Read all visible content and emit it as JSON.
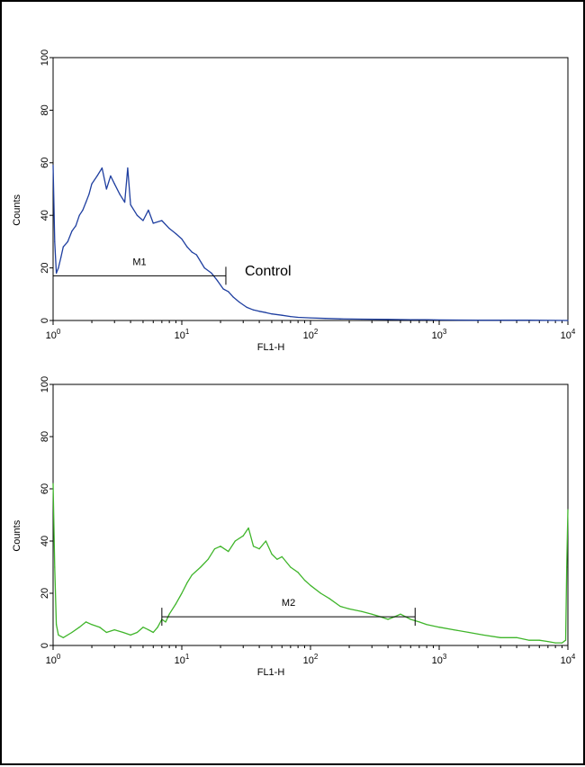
{
  "chart_data": [
    {
      "type": "line",
      "name": "top-panel",
      "x_scale": "log",
      "xlim": [
        1,
        10000
      ],
      "ylim": [
        0,
        100
      ],
      "xlabel": "FL1-H",
      "ylabel": "Counts",
      "y_ticks": [
        "0",
        "20",
        "40",
        "60",
        "80",
        "100"
      ],
      "x_ticks": [
        {
          "base": "10",
          "exp": "0"
        },
        {
          "base": "10",
          "exp": "1"
        },
        {
          "base": "10",
          "exp": "2"
        },
        {
          "base": "10",
          "exp": "3"
        },
        {
          "base": "10",
          "exp": "4"
        }
      ],
      "grid": false,
      "color": "#1f3fa0",
      "annotation": "Control",
      "marker": {
        "label": "M1",
        "x_start": 1.0,
        "x_end": 22,
        "y": 17
      },
      "series": [
        {
          "x": [
            1.0,
            1.03,
            1.06,
            1.1,
            1.15,
            1.2,
            1.3,
            1.4,
            1.5,
            1.6,
            1.7,
            1.8,
            1.9,
            2.0,
            2.2,
            2.4,
            2.6,
            2.8,
            3.0,
            3.3,
            3.6,
            3.8,
            4.0,
            4.5,
            5.0,
            5.5,
            6.0,
            7.0,
            8.0,
            9.0,
            10.0,
            11.0,
            12.0,
            13.0,
            15.0,
            17.0,
            19.0,
            21.0,
            23.0,
            25.0,
            28.0,
            32.0,
            36.0,
            40.0,
            45.0,
            50.0,
            60.0,
            70.0,
            80.0,
            100.0,
            130.0,
            170.0,
            250.0,
            400.0,
            600.0,
            800.0,
            1000.0,
            2000.0,
            5000.0,
            10000.0
          ],
          "y": [
            59,
            30,
            18,
            20,
            24,
            28,
            30,
            34,
            36,
            40,
            42,
            45,
            48,
            52,
            55,
            58,
            50,
            55,
            52,
            48,
            45,
            58,
            44,
            40,
            38,
            42,
            37,
            38,
            35,
            33,
            31,
            28,
            26,
            25,
            20,
            18,
            15,
            12,
            11,
            9,
            7,
            5,
            4,
            3.5,
            3,
            2.5,
            2,
            1.5,
            1.2,
            1,
            0.8,
            0.6,
            0.5,
            0.4,
            0.3,
            0.3,
            0.2,
            0.1,
            0.1,
            0
          ]
        }
      ]
    },
    {
      "type": "line",
      "name": "bottom-panel",
      "x_scale": "log",
      "xlim": [
        1,
        10000
      ],
      "ylim": [
        0,
        100
      ],
      "xlabel": "FL1-H",
      "ylabel": "Counts",
      "y_ticks": [
        "0",
        "20",
        "40",
        "60",
        "80",
        "100"
      ],
      "x_ticks": [
        {
          "base": "10",
          "exp": "0"
        },
        {
          "base": "10",
          "exp": "1"
        },
        {
          "base": "10",
          "exp": "2"
        },
        {
          "base": "10",
          "exp": "3"
        },
        {
          "base": "10",
          "exp": "4"
        }
      ],
      "grid": false,
      "color": "#3fb52a",
      "marker": {
        "label": "M2",
        "x_start": 7,
        "x_end": 650,
        "y": 11
      },
      "series": [
        {
          "x": [
            1.0,
            1.03,
            1.06,
            1.1,
            1.2,
            1.4,
            1.6,
            1.8,
            2.0,
            2.3,
            2.6,
            3.0,
            3.5,
            4.0,
            4.5,
            5.0,
            5.5,
            6.0,
            6.5,
            7.0,
            7.5,
            8.0,
            9.0,
            10.0,
            11.0,
            12.0,
            14.0,
            16.0,
            18.0,
            20.0,
            23.0,
            26.0,
            30.0,
            33.0,
            36.0,
            40.0,
            45.0,
            50.0,
            55.0,
            60.0,
            70.0,
            80.0,
            90.0,
            100.0,
            120.0,
            140.0,
            170.0,
            200.0,
            250.0,
            300.0,
            350.0,
            400.0,
            450.0,
            500.0,
            600.0,
            700.0,
            800.0,
            1000.0,
            1300.0,
            1700.0,
            2200.0,
            3000.0,
            4000.0,
            5000.0,
            6000.0,
            7000.0,
            8000.0,
            9000.0,
            9600.0,
            9800.0,
            10000.0
          ],
          "y": [
            62,
            30,
            8,
            4,
            3,
            5,
            7,
            9,
            8,
            7,
            5,
            6,
            5,
            4,
            5,
            7,
            6,
            5,
            7,
            10,
            9,
            12,
            16,
            20,
            24,
            27,
            30,
            33,
            37,
            38,
            36,
            40,
            42,
            45,
            38,
            37,
            40,
            35,
            33,
            34,
            30,
            28,
            25,
            23,
            20,
            18,
            15,
            14,
            13,
            12,
            11,
            10,
            11,
            12,
            10,
            9,
            8,
            7,
            6,
            5,
            4,
            3,
            3,
            2,
            2,
            1.5,
            1,
            1,
            2,
            30,
            52
          ]
        }
      ]
    }
  ]
}
